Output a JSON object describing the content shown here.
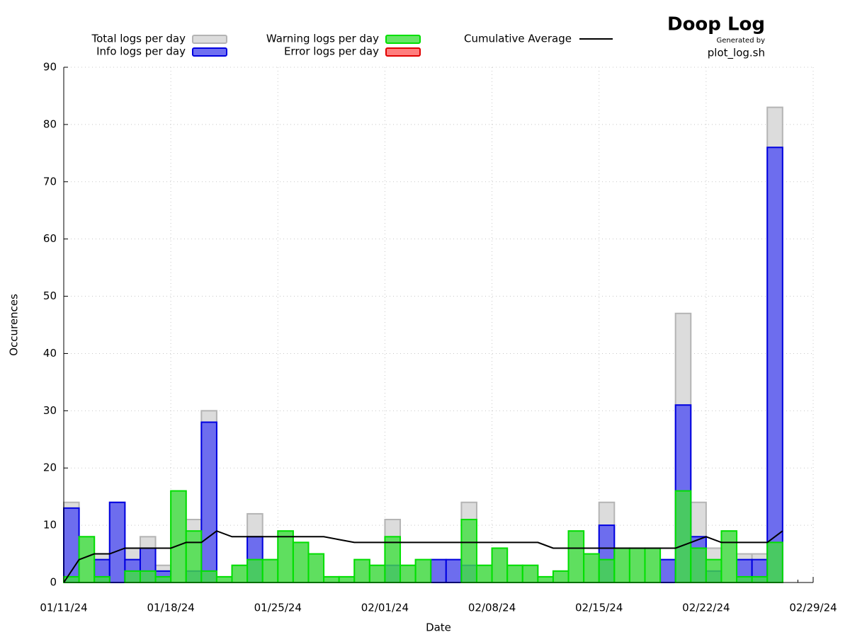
{
  "chart_data": {
    "type": "step",
    "title": "Doop Log",
    "subtitle": "Generated by",
    "source": "plot_log.sh",
    "xlabel": "Date",
    "ylabel": "Occurences",
    "x": [
      "01/11/24",
      "01/12/24",
      "01/13/24",
      "01/14/24",
      "01/15/24",
      "01/16/24",
      "01/17/24",
      "01/18/24",
      "01/19/24",
      "01/20/24",
      "01/21/24",
      "01/22/24",
      "01/23/24",
      "01/24/24",
      "01/25/24",
      "01/26/24",
      "01/27/24",
      "01/28/24",
      "01/29/24",
      "01/30/24",
      "01/31/24",
      "02/01/24",
      "02/02/24",
      "02/03/24",
      "02/04/24",
      "02/05/24",
      "02/06/24",
      "02/07/24",
      "02/08/24",
      "02/09/24",
      "02/10/24",
      "02/11/24",
      "02/12/24",
      "02/13/24",
      "02/14/24",
      "02/15/24",
      "02/16/24",
      "02/17/24",
      "02/18/24",
      "02/19/24",
      "02/20/24",
      "02/21/24",
      "02/22/24",
      "02/23/24",
      "02/24/24",
      "02/25/24",
      "02/26/24"
    ],
    "series": [
      {
        "name": "Total logs per day",
        "color": "#dcdcdc",
        "edge_color": "#b4b4b4",
        "opacity": 1,
        "values": [
          14,
          8,
          5,
          14,
          6,
          8,
          3,
          16,
          11,
          30,
          1,
          3,
          12,
          4,
          9,
          7,
          5,
          1,
          1,
          4,
          3,
          11,
          3,
          4,
          4,
          4,
          14,
          3,
          6,
          3,
          3,
          1,
          2,
          9,
          5,
          14,
          6,
          6,
          6,
          4,
          47,
          14,
          6,
          9,
          5,
          5,
          83
        ]
      },
      {
        "name": "Info logs per day",
        "color": "#6060f0",
        "edge_color": "#0000e0",
        "opacity": 0.9,
        "values": [
          13,
          0,
          4,
          14,
          4,
          6,
          2,
          0,
          2,
          28,
          0,
          0,
          8,
          0,
          0,
          0,
          0,
          0,
          0,
          0,
          0,
          3,
          0,
          0,
          4,
          4,
          3,
          0,
          0,
          0,
          0,
          0,
          0,
          0,
          0,
          10,
          0,
          0,
          0,
          4,
          31,
          8,
          2,
          0,
          4,
          4,
          76
        ]
      },
      {
        "name": "Warning logs per day",
        "color": "#40e040",
        "edge_color": "#00e000",
        "opacity": 0.8,
        "values": [
          1,
          8,
          1,
          0,
          2,
          2,
          1,
          16,
          9,
          2,
          1,
          3,
          4,
          4,
          9,
          7,
          5,
          1,
          1,
          4,
          3,
          8,
          3,
          4,
          0,
          0,
          11,
          3,
          6,
          3,
          3,
          1,
          2,
          9,
          5,
          4,
          6,
          6,
          6,
          0,
          16,
          6,
          4,
          9,
          1,
          1,
          7
        ]
      },
      {
        "name": "Error logs per day",
        "color": "#ff7070",
        "edge_color": "#e00000",
        "opacity": 0.9,
        "values": [
          0,
          0,
          0,
          0,
          0,
          0,
          0,
          0,
          0,
          0,
          0,
          0,
          0,
          0,
          0,
          0,
          0,
          0,
          0,
          0,
          0,
          0,
          0,
          0,
          0,
          0,
          0,
          0,
          0,
          0,
          0,
          0,
          0,
          0,
          0,
          0,
          0,
          0,
          0,
          0,
          0,
          0,
          0,
          0,
          0,
          0,
          0
        ]
      },
      {
        "name": "Cumulative Average",
        "color": "#000000",
        "style": "line",
        "x": [
          "01/11/24",
          "01/12/24",
          "01/13/24",
          "01/14/24",
          "01/15/24",
          "01/16/24",
          "01/17/24",
          "01/18/24",
          "01/19/24",
          "01/20/24",
          "01/21/24",
          "01/22/24",
          "01/23/24",
          "01/24/24",
          "01/25/24",
          "01/26/24",
          "01/27/24",
          "01/28/24",
          "01/29/24",
          "01/30/24",
          "01/31/24",
          "02/01/24",
          "02/02/24",
          "02/03/24",
          "02/04/24",
          "02/05/24",
          "02/06/24",
          "02/07/24",
          "02/08/24",
          "02/09/24",
          "02/10/24",
          "02/11/24",
          "02/12/24",
          "02/13/24",
          "02/14/24",
          "02/15/24",
          "02/16/24",
          "02/17/24",
          "02/18/24",
          "02/19/24",
          "02/20/24",
          "02/21/24",
          "02/22/24",
          "02/23/24",
          "02/24/24",
          "02/25/24",
          "02/26/24",
          "02/27/24"
        ],
        "values": [
          0,
          4,
          5,
          5,
          6,
          6,
          6,
          6,
          7,
          7,
          9,
          8,
          8,
          8,
          8,
          8,
          8,
          8,
          7.5,
          7,
          7,
          7,
          7,
          7,
          7,
          7,
          7,
          7,
          7,
          7,
          7,
          7,
          6,
          6,
          6,
          6,
          6,
          6,
          6,
          6,
          6,
          7,
          8,
          7,
          7,
          7,
          7,
          9
        ]
      }
    ],
    "xlim": [
      "01/11/24",
      "02/29/24"
    ],
    "xticks": [
      "01/11/24",
      "01/18/24",
      "01/25/24",
      "02/01/24",
      "02/08/24",
      "02/15/24",
      "02/22/24",
      "02/29/24"
    ],
    "ylim": [
      0,
      90
    ],
    "yticks": [
      0,
      10,
      20,
      30,
      40,
      50,
      60,
      70,
      80,
      90
    ],
    "grid": true,
    "legend": "top"
  }
}
